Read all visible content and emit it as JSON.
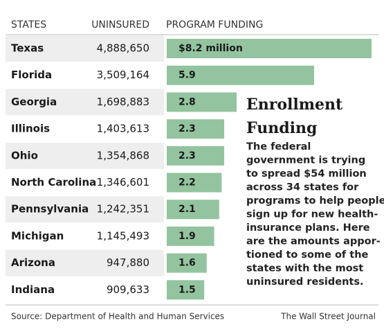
{
  "chart_data": {
    "type": "bar",
    "headers": [
      "STATES",
      "UNINSURED",
      "PROGRAM FUNDING"
    ],
    "categories": [
      "Texas",
      "Florida",
      "Georgia",
      "Illinois",
      "Ohio",
      "North Carolina",
      "Pennsylvania",
      "Michigan",
      "Arizona",
      "Indiana"
    ],
    "uninsured": [
      "4,888,650",
      "3,509,164",
      "1,698,883",
      "1,403,613",
      "1,354,868",
      "1,346,601",
      "1,242,351",
      "1,145,493",
      "947,880",
      "909,633"
    ],
    "values": [
      8.2,
      5.9,
      2.8,
      2.3,
      2.3,
      2.2,
      2.1,
      1.9,
      1.6,
      1.5
    ],
    "value_labels": [
      "$8.2 million",
      "5.9",
      "2.8",
      "2.3",
      "2.3",
      "2.2",
      "2.1",
      "1.9",
      "1.6",
      "1.5"
    ],
    "color": "#93c49f",
    "annotation_title": [
      "Enrollment",
      "Funding"
    ],
    "annotation_text": [
      "The federal",
      "government is trying",
      "to spread $54 million",
      "across 34 states for",
      "programs to help people",
      "sign up for new health-",
      "insurance plans. Here",
      "are the amounts appor-",
      "tioned to some of the",
      "states with the most",
      "uninsured residents."
    ],
    "source": "Source: Department of Health and Human Services",
    "credit": "The Wall Street Journal"
  }
}
